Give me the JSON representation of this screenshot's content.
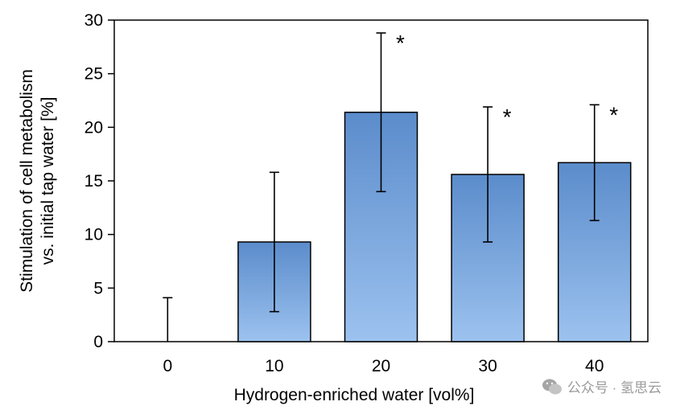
{
  "chart_data": {
    "type": "bar",
    "categories": [
      "0",
      "10",
      "20",
      "30",
      "40"
    ],
    "values": [
      0,
      9.3,
      21.4,
      15.6,
      16.7
    ],
    "error_upper": [
      4.1,
      15.8,
      28.8,
      21.9,
      22.1
    ],
    "error_lower": [
      0,
      2.8,
      14.0,
      9.3,
      11.3
    ],
    "significant": [
      false,
      false,
      true,
      true,
      true
    ],
    "significance_marker": "*",
    "ylim": [
      0,
      30
    ],
    "yticks": [
      0,
      5,
      10,
      15,
      20,
      25,
      30
    ],
    "ytick_labels": [
      "0",
      "5",
      "10",
      "15",
      "20",
      "25",
      "30"
    ],
    "xlabel": "Hydrogen-enriched water [vol%]",
    "ylabel_line1": "Stimulation of cell metabolism",
    "ylabel_line2": "vs. initial tap water [%]",
    "bar_color_top": "#5b8ccb",
    "bar_color_bottom": "#9cc2ef",
    "bar_outline": "#000000",
    "grid": false
  },
  "watermark": {
    "text": "公众号 · 氢思云",
    "icon": "wechat-icon"
  }
}
